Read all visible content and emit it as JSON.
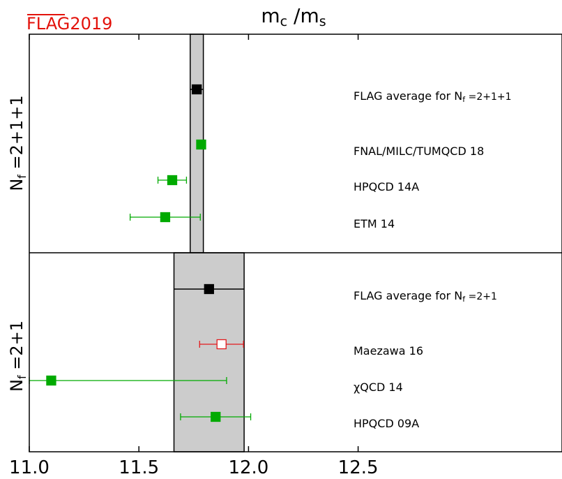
{
  "logo": {
    "text": "FLAG2019",
    "color": "#e3120b"
  },
  "chart_data": {
    "type": "scatter",
    "title_base": "m",
    "title_sub1": "c",
    "title_slash": " /m",
    "title_sub2": "s",
    "xlim": [
      11.0,
      13.43
    ],
    "x_ticks": [
      11.0,
      11.5,
      12.0,
      12.5
    ],
    "x_tick_labels": [
      "11.0",
      "11.5",
      "12.0",
      "12.5"
    ],
    "colors": {
      "green": "#00aa00",
      "red": "#e31a1c",
      "black": "#000000",
      "band": "#cccccc"
    },
    "panels": [
      {
        "label_base": "N",
        "label_sub": "f",
        "label_rest": " =2+1+1",
        "band": [
          11.734,
          11.794
        ],
        "entries": [
          {
            "label": "FLAG average for N",
            "label_sub": "f",
            "label_rest": " =2+1+1",
            "value": 11.764,
            "err_low": 11.734,
            "err_high": 11.794,
            "color": "black",
            "filled": true
          },
          {
            "label": "FNAL/MILC/TUMQCD 18",
            "value": 11.784,
            "err_low": 11.764,
            "err_high": 11.804,
            "color": "green",
            "filled": true
          },
          {
            "label": "HPQCD 14A",
            "value": 11.652,
            "err_low": 11.587,
            "err_high": 11.717,
            "color": "green",
            "filled": true
          },
          {
            "label": "ETM 14",
            "value": 11.62,
            "err_low": 11.46,
            "err_high": 11.78,
            "color": "green",
            "filled": true
          }
        ]
      },
      {
        "label_base": "N",
        "label_sub": "f",
        "label_rest": " =2+1",
        "band": [
          11.66,
          11.98
        ],
        "entries": [
          {
            "label": "FLAG average for N",
            "label_sub": "f",
            "label_rest": " =2+1",
            "value": 11.82,
            "err_low": 11.66,
            "err_high": 11.98,
            "color": "black",
            "filled": true
          },
          {
            "label": "Maezawa 16",
            "value": 11.877,
            "err_low": 11.777,
            "err_high": 11.977,
            "color": "red",
            "filled": false
          },
          {
            "label": "χQCD 14",
            "value": 11.1,
            "err_low": 11.0,
            "err_high": 11.9,
            "color": "green",
            "filled": true
          },
          {
            "label": "HPQCD 09A",
            "value": 11.85,
            "err_low": 11.69,
            "err_high": 12.01,
            "color": "green",
            "filled": true
          }
        ]
      }
    ]
  }
}
